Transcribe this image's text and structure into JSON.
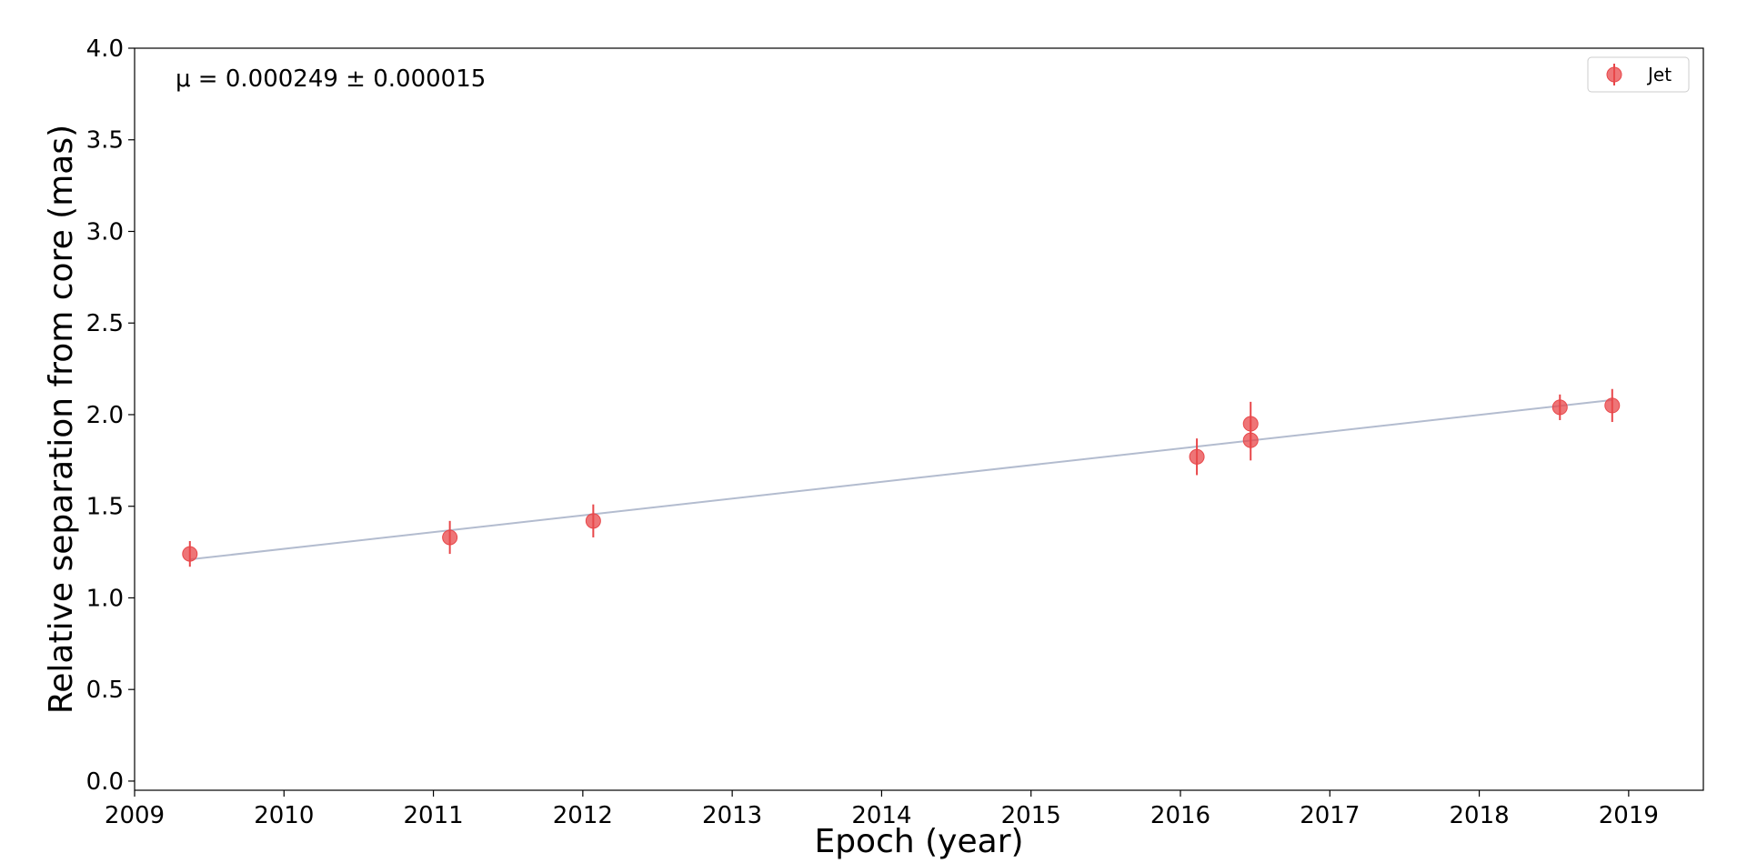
{
  "chart_data": {
    "type": "scatter",
    "title": "",
    "xlabel": "Epoch (year)",
    "ylabel": "Relative separation from core (mas)",
    "xlim": [
      2009.0,
      2019.5
    ],
    "ylim": [
      -0.05,
      4.0
    ],
    "xticks": [
      2009,
      2010,
      2011,
      2012,
      2013,
      2014,
      2015,
      2016,
      2017,
      2018,
      2019
    ],
    "xtick_labels": [
      "2009",
      "2010",
      "2011",
      "2012",
      "2013",
      "2014",
      "2015",
      "2016",
      "2017",
      "2018",
      "2019"
    ],
    "yticks": [
      0.0,
      0.5,
      1.0,
      1.5,
      2.0,
      2.5,
      3.0,
      3.5,
      4.0
    ],
    "ytick_labels": [
      "0.0",
      "0.5",
      "1.0",
      "1.5",
      "2.0",
      "2.5",
      "3.0",
      "3.5",
      "4.0"
    ],
    "annotation": "μ = 0.000249 ± 0.000015",
    "legend": {
      "placement": "top-right",
      "entries": [
        "Jet"
      ]
    },
    "grid": false,
    "series": [
      {
        "name": "Jet",
        "color": "#e8474a",
        "x": [
          2009.37,
          2011.11,
          2012.07,
          2016.11,
          2016.47,
          2016.47,
          2018.54,
          2018.89
        ],
        "y": [
          1.24,
          1.33,
          1.42,
          1.77,
          1.86,
          1.95,
          2.04,
          2.05
        ],
        "yerr": [
          0.07,
          0.09,
          0.09,
          0.1,
          0.11,
          0.12,
          0.07,
          0.09
        ]
      }
    ],
    "fit_line": {
      "color": "#b3bccf",
      "x": [
        2009.37,
        2018.89
      ],
      "y": [
        1.21,
        2.08
      ]
    }
  }
}
